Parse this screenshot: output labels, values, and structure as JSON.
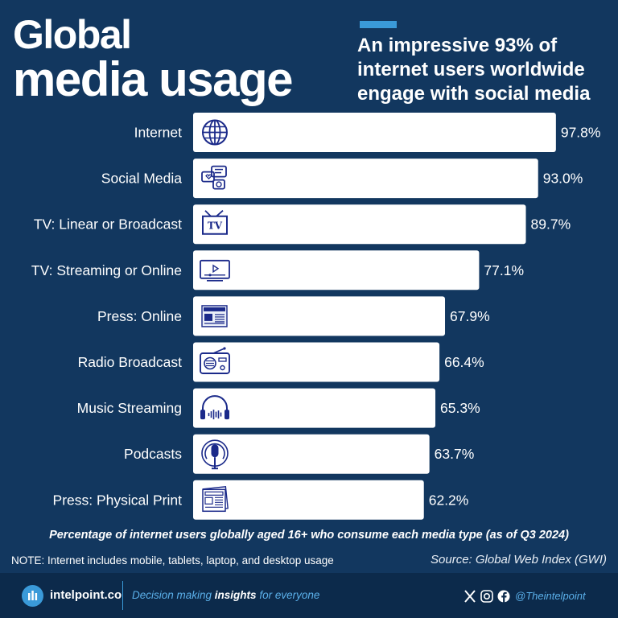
{
  "title_line1": "Global",
  "title_line2": "media usage",
  "subtitle": "An impressive 93% of internet users worldwide engage with social media",
  "chart_data": {
    "type": "bar",
    "orientation": "horizontal",
    "categories": [
      "Internet",
      "Social Media",
      "TV: Linear or Broadcast",
      "TV: Streaming or Online",
      "Press: Online",
      "Radio Broadcast",
      "Music Streaming",
      "Podcasts",
      "Press: Physical Print"
    ],
    "values": [
      97.8,
      93.0,
      89.7,
      77.1,
      67.9,
      66.4,
      65.3,
      63.7,
      62.2
    ],
    "value_labels": [
      "97.8%",
      "93.0%",
      "89.7%",
      "77.1%",
      "67.9%",
      "66.4%",
      "65.3%",
      "63.7%",
      "62.2%"
    ],
    "icons": [
      "globe-icon",
      "chat-bubbles-icon",
      "tv-antenna-icon",
      "streaming-screen-icon",
      "online-news-icon",
      "radio-icon",
      "headphones-icon",
      "podcast-mic-icon",
      "newspaper-icon"
    ],
    "bar_color": "#ffffff",
    "icon_color": "#1b2a8a",
    "xlim": [
      0,
      100
    ]
  },
  "caption": "Percentage of internet users globally aged 16+ who consume each media type (as of Q3 2024)",
  "note": "NOTE: Internet includes mobile, tablets, laptop, and desktop usage",
  "source": "Source: Global Web Index (GWI)",
  "footer": {
    "brand": "intelpoint.co",
    "tagline_pre": "Decision making ",
    "tagline_bold": "insights",
    "tagline_post": " for everyone",
    "social_icons": [
      "x-icon",
      "instagram-icon",
      "facebook-icon"
    ],
    "handle": "@Theintelpoint"
  },
  "colors": {
    "background": "#12375f",
    "footer": "#0c2a4b",
    "accent": "#3a9ad9"
  }
}
